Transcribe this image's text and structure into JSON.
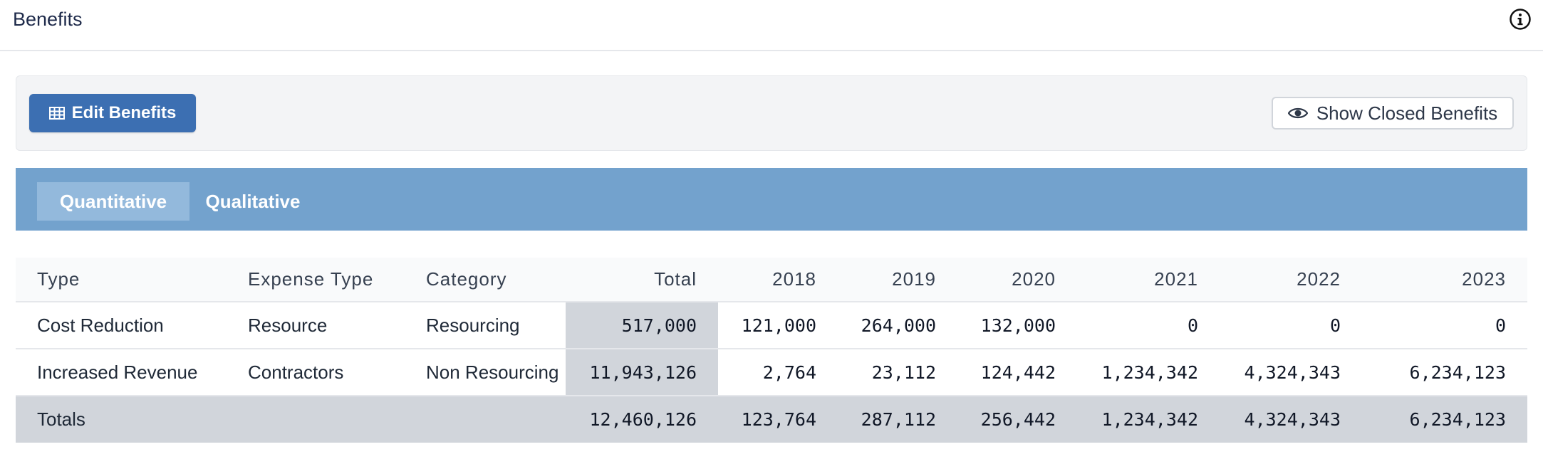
{
  "header": {
    "title": "Benefits",
    "info_icon": "info-circle-icon"
  },
  "toolbar": {
    "edit_label": "Edit Benefits",
    "edit_icon": "table-icon",
    "show_closed_label": "Show Closed Benefits",
    "show_closed_icon": "eye-icon"
  },
  "tabs": [
    {
      "label": "Quantitative",
      "active": true
    },
    {
      "label": "Qualitative",
      "active": false
    }
  ],
  "table": {
    "headers": [
      "Type",
      "Expense Type",
      "Category",
      "Total",
      "2018",
      "2019",
      "2020",
      "2021",
      "2022",
      "2023"
    ],
    "rows": [
      [
        "Cost Reduction",
        "Resource",
        "Resourcing",
        "517,000",
        "121,000",
        "264,000",
        "132,000",
        "0",
        "0",
        "0"
      ],
      [
        "Increased Revenue",
        "Contractors",
        "Non Resourcing",
        "11,943,126",
        "2,764",
        "23,112",
        "124,442",
        "1,234,342",
        "4,324,343",
        "6,234,123"
      ]
    ],
    "totals": [
      "Totals",
      "",
      "",
      "12,460,126",
      "123,764",
      "287,112",
      "256,442",
      "1,234,342",
      "4,324,343",
      "6,234,123"
    ]
  },
  "colors": {
    "primary": "#3c6fb2",
    "tabbar": "#73a2cd",
    "tab_active": "#93b9dc",
    "totals_bg": "#d1d5db"
  }
}
